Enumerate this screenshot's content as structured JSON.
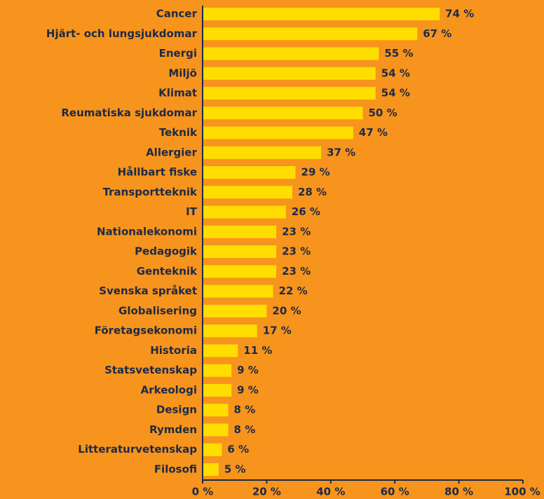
{
  "chart_data": {
    "type": "barh",
    "categories": [
      "Cancer",
      "Hjärt- och lungsjukdomar",
      "Energi",
      "Miljö",
      "Klimat",
      "Reumatiska sjukdomar",
      "Teknik",
      "Allergier",
      "Hållbart fiske",
      "Transportteknik",
      "IT",
      "Nationalekonomi",
      "Pedagogik",
      "Genteknik",
      "Svenska språket",
      "Globalisering",
      "Företagsekonomi",
      "Historia",
      "Statsvetenskap",
      "Arkeologi",
      "Design",
      "Rymden",
      "Litteraturvetenskap",
      "Filosofi"
    ],
    "values": [
      74,
      67,
      55,
      54,
      54,
      50,
      47,
      37,
      29,
      28,
      26,
      23,
      23,
      23,
      22,
      20,
      17,
      11,
      9,
      9,
      8,
      8,
      6,
      5
    ],
    "value_labels": [
      "74 %",
      "67 %",
      "55 %",
      "54 %",
      "54 %",
      "50 %",
      "47 %",
      "37 %",
      "29 %",
      "28 %",
      "26 %",
      "23 %",
      "23 %",
      "23 %",
      "22 %",
      "20 %",
      "17 %",
      "11 %",
      "9 %",
      "9 %",
      "8 %",
      "8 %",
      "6 %",
      "5 %"
    ],
    "color": "#ffdd00",
    "xlim": [
      0,
      100
    ],
    "xticks": [
      {
        "value": 0,
        "label": "0 %"
      },
      {
        "value": 20,
        "label": "20 %"
      },
      {
        "value": 40,
        "label": "40 %"
      },
      {
        "value": 60,
        "label": "60 %"
      },
      {
        "value": 80,
        "label": "80 %"
      },
      {
        "value": 100,
        "label": "100 %"
      }
    ]
  }
}
